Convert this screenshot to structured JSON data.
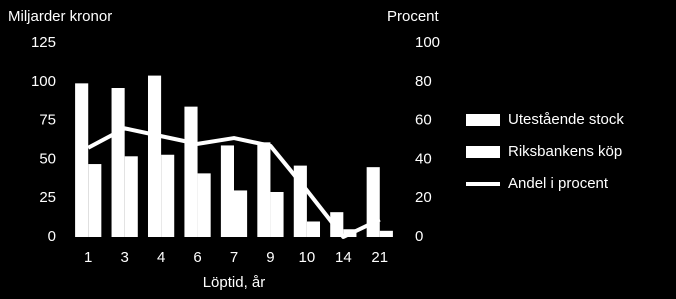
{
  "chart_data": {
    "type": "bar-line",
    "y_label": "Miljarder kronor",
    "y2_label": "Procent",
    "x_label": "Löptid, år",
    "categories": [
      "1",
      "3",
      "4",
      "6",
      "7",
      "9",
      "10",
      "14",
      "21"
    ],
    "series": [
      {
        "name": "Utestående stock",
        "type": "bar",
        "color": "#ffffff",
        "values": [
          99,
          96,
          104,
          84,
          59,
          61,
          46,
          16,
          45
        ]
      },
      {
        "name": "Riksbankens köp",
        "type": "bar",
        "color": "#ffffff",
        "values": [
          47,
          52,
          53,
          41,
          30,
          29,
          10,
          5,
          4
        ]
      },
      {
        "name": "Andel i procent",
        "type": "line",
        "axis": "y2",
        "color": "#ffffff",
        "values": [
          46,
          56,
          52,
          48,
          51,
          47,
          24,
          0,
          9
        ]
      }
    ],
    "ylim": [
      0,
      125
    ],
    "yticks": [
      0,
      25,
      50,
      75,
      100,
      125
    ],
    "y2lim": [
      0,
      100
    ],
    "y2ticks": [
      0,
      20,
      40,
      60,
      80,
      100
    ]
  }
}
